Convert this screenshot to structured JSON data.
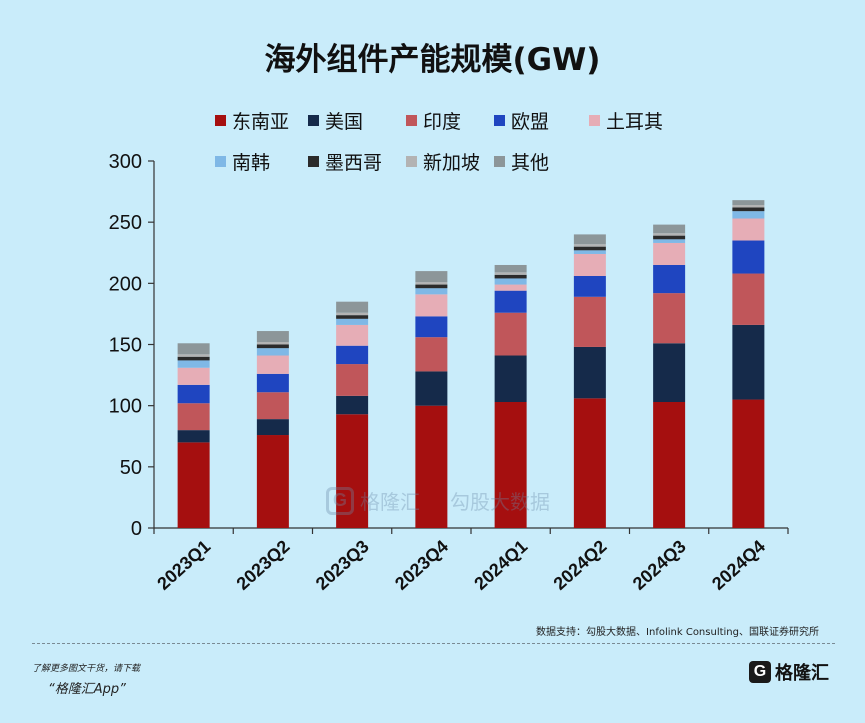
{
  "chart_data": {
    "type": "bar",
    "stacked": true,
    "title": "海外组件产能规模(GW)",
    "categories": [
      "2023Q1",
      "2023Q2",
      "2023Q3",
      "2023Q4",
      "2024Q1",
      "2024Q2",
      "2024Q3",
      "2024Q4"
    ],
    "ylim": [
      0,
      300
    ],
    "yticks": [
      0,
      50,
      100,
      150,
      200,
      250,
      300
    ],
    "grid": false,
    "legend_position": "top",
    "series": [
      {
        "name": "东南亚",
        "color": "#a50f0f",
        "values": [
          70,
          76,
          93,
          100,
          103,
          106,
          103,
          105
        ]
      },
      {
        "name": "美国",
        "color": "#152a4a",
        "values": [
          10,
          13,
          15,
          28,
          38,
          42,
          48,
          61
        ]
      },
      {
        "name": "印度",
        "color": "#c0565a",
        "values": [
          22,
          22,
          26,
          28,
          35,
          41,
          41,
          42
        ]
      },
      {
        "name": "欧盟",
        "color": "#1f45c0",
        "values": [
          15,
          15,
          15,
          17,
          18,
          17,
          23,
          27
        ]
      },
      {
        "name": "土耳其",
        "color": "#e6adb6",
        "values": [
          14,
          15,
          17,
          18,
          5,
          18,
          18,
          18
        ]
      },
      {
        "name": "南韩",
        "color": "#7fb8e6",
        "values": [
          6,
          6,
          5,
          5,
          5,
          3,
          3,
          6
        ]
      },
      {
        "name": "墨西哥",
        "color": "#2b2b2b",
        "values": [
          3,
          3,
          3,
          3,
          3,
          3,
          3,
          3
        ]
      },
      {
        "name": "新加坡",
        "color": "#b3b3b3",
        "values": [
          2,
          2,
          2,
          2,
          2,
          2,
          2,
          2
        ]
      },
      {
        "name": "其他",
        "color": "#8c9699",
        "values": [
          9,
          9,
          9,
          9,
          6,
          8,
          7,
          4
        ]
      }
    ]
  },
  "watermark": {
    "left_logo": "G",
    "left_text": "格隆汇",
    "right_text": "勾股大数据"
  },
  "source_text": "数据支持：勾股大数据、Infolink Consulting、国联证券研究所",
  "footer": {
    "line1": "了解更多图文干货，请下载",
    "line2": "“格隆汇App”",
    "brand_logo": "G",
    "brand_name": "格隆汇"
  }
}
